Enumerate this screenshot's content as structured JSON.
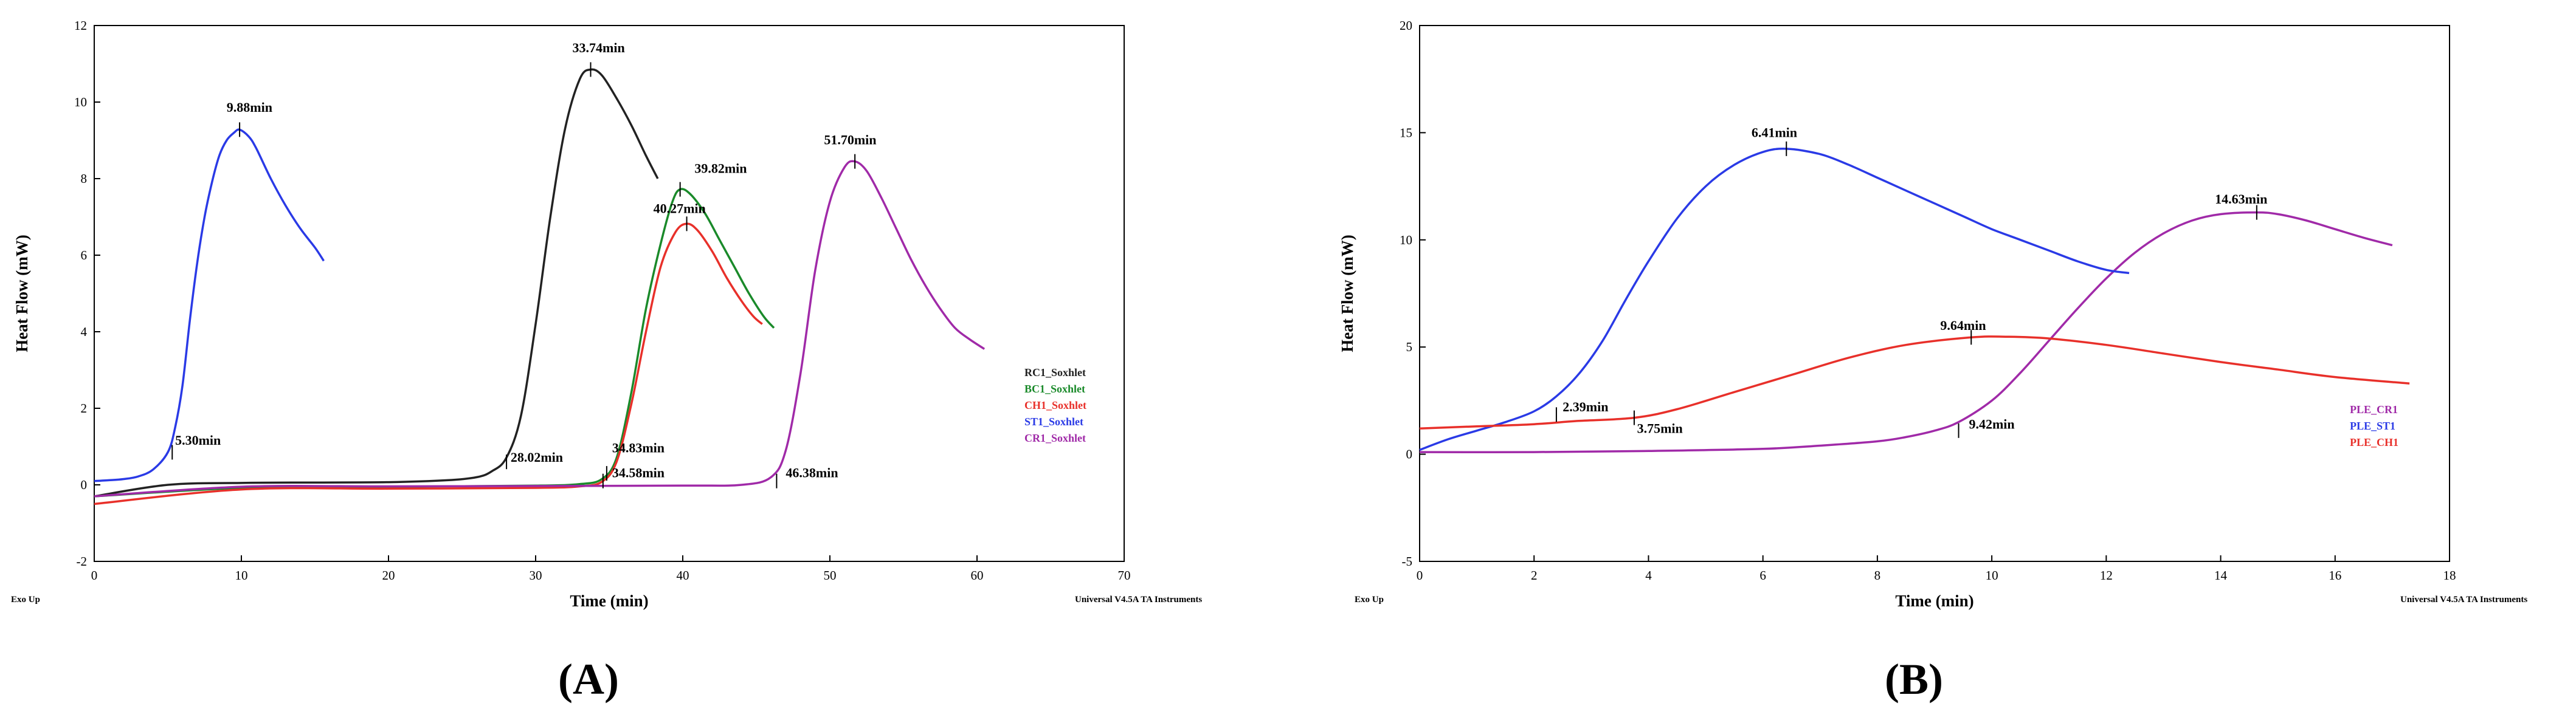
{
  "chart_data": [
    {
      "type": "line",
      "panel_label": "(A)",
      "xlabel": "Time (min)",
      "ylabel": "Heat Flow (mW)",
      "xlim": [
        0,
        70
      ],
      "ylim": [
        -2,
        12
      ],
      "xticks": [
        0,
        10,
        20,
        30,
        40,
        50,
        60,
        70
      ],
      "yticks": [
        -2,
        0,
        2,
        4,
        6,
        8,
        10,
        12
      ],
      "corner_left": "Exo Up",
      "corner_right": "Universal V4.5A TA Instruments",
      "legend_position": "right",
      "colors": {
        "RC1_Soxhlet": "#222222",
        "BC1_Soxhlet": "#1a8a2a",
        "CH1_Soxhlet": "#e8302a",
        "ST1_Soxhlet": "#2a3ae6",
        "CR1_Soxhlet": "#a02aa8"
      },
      "series": [
        {
          "name": "RC1_Soxhlet",
          "x": [
            0,
            5,
            10,
            15,
            20,
            24,
            26,
            27,
            28,
            29,
            30,
            31,
            32,
            33,
            33.74,
            34.5,
            35.5,
            36.5,
            37.5,
            38.3
          ],
          "y": [
            -0.3,
            0.0,
            0.05,
            0.06,
            0.07,
            0.12,
            0.2,
            0.35,
            0.7,
            1.8,
            4.2,
            7.0,
            9.3,
            10.6,
            10.85,
            10.7,
            10.1,
            9.4,
            8.6,
            8.0
          ]
        },
        {
          "name": "BC1_Soxhlet",
          "x": [
            0,
            10,
            20,
            30,
            33,
            34.5,
            35.5,
            36.5,
            37.5,
            38.5,
            39.3,
            39.82,
            40.5,
            41.5,
            42.5,
            43.5,
            44.5,
            45.5,
            46.2
          ],
          "y": [
            -0.3,
            -0.08,
            -0.05,
            -0.02,
            0.02,
            0.15,
            0.7,
            2.4,
            4.6,
            6.3,
            7.4,
            7.72,
            7.6,
            7.1,
            6.4,
            5.7,
            5.0,
            4.4,
            4.1
          ]
        },
        {
          "name": "CH1_Soxhlet",
          "x": [
            0,
            10,
            20,
            30,
            33,
            34.5,
            35.5,
            36.5,
            37.5,
            38.5,
            39.5,
            40.27,
            41,
            42,
            43,
            44,
            44.8,
            45.4
          ],
          "y": [
            -0.5,
            -0.12,
            -0.1,
            -0.08,
            -0.04,
            0.08,
            0.6,
            2.1,
            4.0,
            5.7,
            6.6,
            6.82,
            6.65,
            6.1,
            5.4,
            4.8,
            4.4,
            4.2
          ]
        },
        {
          "name": "ST1_Soxhlet",
          "x": [
            0,
            1,
            2,
            3,
            4,
            5,
            5.5,
            6,
            6.5,
            7,
            7.5,
            8,
            8.5,
            9,
            9.5,
            9.88,
            10.5,
            11,
            12,
            13,
            14,
            15,
            15.6
          ],
          "y": [
            0.1,
            0.12,
            0.15,
            0.22,
            0.4,
            0.85,
            1.5,
            2.6,
            4.3,
            5.8,
            7.0,
            7.9,
            8.6,
            9.0,
            9.2,
            9.28,
            9.1,
            8.8,
            8.0,
            7.3,
            6.7,
            6.2,
            5.85
          ]
        },
        {
          "name": "CR1_Soxhlet",
          "x": [
            0,
            10,
            20,
            30,
            40,
            44,
            46,
            47,
            48,
            49,
            50,
            51,
            51.7,
            52.5,
            53.5,
            54.5,
            55.5,
            56.5,
            57.5,
            58.5,
            59.5,
            60.5
          ],
          "y": [
            -0.3,
            -0.05,
            -0.04,
            -0.03,
            -0.02,
            0.0,
            0.2,
            0.9,
            2.9,
            5.6,
            7.4,
            8.3,
            8.45,
            8.2,
            7.5,
            6.7,
            5.9,
            5.2,
            4.6,
            4.1,
            3.8,
            3.55
          ]
        }
      ],
      "annotations": [
        {
          "text": "9.88min",
          "x": 9.88,
          "y": 9.28,
          "label_x": 9.0,
          "label_y": 9.75
        },
        {
          "text": "33.74min",
          "x": 33.74,
          "y": 10.85,
          "label_x": 32.5,
          "label_y": 11.3
        },
        {
          "text": "39.82min",
          "x": 39.82,
          "y": 7.72,
          "label_x": 40.8,
          "label_y": 8.15
        },
        {
          "text": "40.27min",
          "x": 40.27,
          "y": 6.82,
          "label_x": 38.0,
          "label_y": 7.1
        },
        {
          "text": "51.70min",
          "x": 51.7,
          "y": 8.45,
          "label_x": 49.6,
          "label_y": 8.9
        },
        {
          "text": "5.30min",
          "x": 5.3,
          "y": 0.85,
          "label_x": 5.5,
          "label_y": 1.05
        },
        {
          "text": "28.02min",
          "x": 28.02,
          "y": 0.6,
          "label_x": 28.3,
          "label_y": 0.6
        },
        {
          "text": "34.83min",
          "x": 34.83,
          "y": 0.3,
          "label_x": 35.2,
          "label_y": 0.85
        },
        {
          "text": "34.58min",
          "x": 34.58,
          "y": 0.1,
          "label_x": 35.2,
          "label_y": 0.2
        },
        {
          "text": "46.38min",
          "x": 46.38,
          "y": 0.1,
          "label_x": 47.0,
          "label_y": 0.2
        }
      ]
    },
    {
      "type": "line",
      "panel_label": "(B)",
      "xlabel": "Time (min)",
      "ylabel": "Heat Flow (mW)",
      "xlim": [
        0,
        18
      ],
      "ylim": [
        -5,
        20
      ],
      "xticks": [
        0,
        2,
        4,
        6,
        8,
        10,
        12,
        14,
        16,
        18
      ],
      "yticks": [
        -5,
        0,
        5,
        10,
        15,
        20
      ],
      "corner_left": "Exo Up",
      "corner_right": "Universal V4.5A TA Instruments",
      "legend_position": "right",
      "colors": {
        "PLE_CR1": "#a02aa8",
        "PLE_ST1": "#2a3ae6",
        "PLE_CH1": "#e8302a"
      },
      "series": [
        {
          "name": "PLE_CR1",
          "x": [
            0,
            2,
            4,
            6,
            7,
            8,
            8.5,
            9,
            9.42,
            10,
            10.5,
            11,
            11.5,
            12,
            12.5,
            13,
            13.5,
            14,
            14.63,
            15,
            15.5,
            16,
            16.5,
            17
          ],
          "y": [
            0.1,
            0.1,
            0.15,
            0.25,
            0.4,
            0.6,
            0.8,
            1.1,
            1.5,
            2.5,
            3.8,
            5.3,
            6.8,
            8.2,
            9.4,
            10.3,
            10.9,
            11.2,
            11.28,
            11.2,
            10.9,
            10.5,
            10.1,
            9.75
          ]
        },
        {
          "name": "PLE_ST1",
          "x": [
            0,
            0.5,
            1,
            1.5,
            2,
            2.39,
            2.8,
            3.2,
            3.6,
            4,
            4.5,
            5,
            5.5,
            6,
            6.41,
            7,
            7.5,
            8,
            8.5,
            9,
            9.5,
            10,
            10.5,
            11,
            11.5,
            12,
            12.4
          ],
          "y": [
            0.2,
            0.7,
            1.1,
            1.5,
            2.0,
            2.7,
            3.8,
            5.3,
            7.2,
            9.0,
            11.0,
            12.5,
            13.5,
            14.1,
            14.25,
            14.0,
            13.5,
            12.9,
            12.3,
            11.7,
            11.1,
            10.5,
            10.0,
            9.5,
            9.0,
            8.6,
            8.45
          ]
        },
        {
          "name": "PLE_CH1",
          "x": [
            0,
            1,
            2,
            2.75,
            3.75,
            4.5,
            5.5,
            6.5,
            7.5,
            8.5,
            9.64,
            10.3,
            11,
            12,
            13,
            14,
            15,
            16,
            17.3
          ],
          "y": [
            1.2,
            1.3,
            1.4,
            1.55,
            1.7,
            2.1,
            2.9,
            3.7,
            4.5,
            5.1,
            5.45,
            5.48,
            5.4,
            5.1,
            4.7,
            4.3,
            3.95,
            3.6,
            3.3
          ]
        }
      ],
      "annotations": [
        {
          "text": "6.41min",
          "x": 6.41,
          "y": 14.25,
          "label_x": 5.8,
          "label_y": 14.8
        },
        {
          "text": "14.63min",
          "x": 14.63,
          "y": 11.28,
          "label_x": 13.9,
          "label_y": 11.7
        },
        {
          "text": "9.64min",
          "x": 9.64,
          "y": 5.45,
          "label_x": 9.1,
          "label_y": 5.8
        },
        {
          "text": "2.39min",
          "x": 2.39,
          "y": 1.85,
          "label_x": 2.5,
          "label_y": 2.0
        },
        {
          "text": "3.75min",
          "x": 3.75,
          "y": 1.7,
          "label_x": 3.8,
          "label_y": 1.0
        },
        {
          "text": "9.42min",
          "x": 9.42,
          "y": 1.1,
          "label_x": 9.6,
          "label_y": 1.2
        }
      ]
    }
  ]
}
